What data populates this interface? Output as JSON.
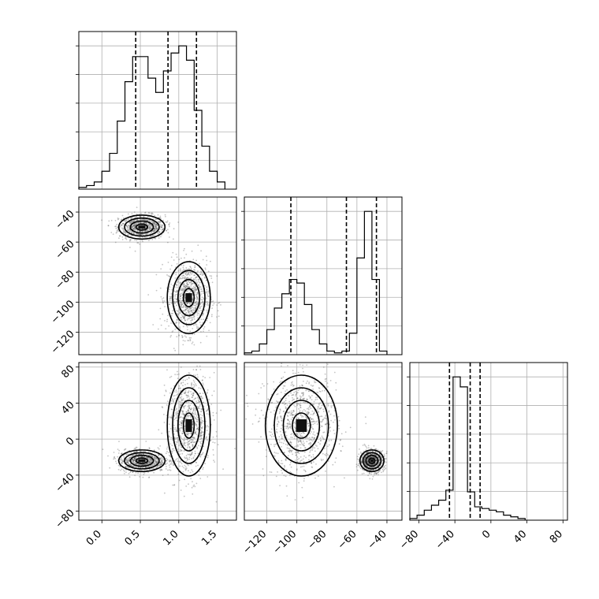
{
  "chart_data": {
    "type": "corner",
    "parameters": [
      {
        "index": 0,
        "range": [
          -0.3,
          1.75
        ],
        "ticks": [
          "0.0",
          "0.5",
          "1.0",
          "1.5"
        ],
        "tick_values": [
          0,
          0.5,
          1.0,
          1.5
        ],
        "quantiles": [
          0.44,
          0.86,
          1.23
        ],
        "histogram": {
          "edges_start": -0.3,
          "bin_width": 0.1,
          "counts": [
            0.5,
            1,
            2,
            5,
            10,
            19,
            30,
            37,
            37,
            31,
            27,
            33,
            38,
            40,
            36,
            22,
            12,
            5,
            2
          ]
        }
      },
      {
        "index": 1,
        "range": [
          -135,
          -30
        ],
        "ticks": [
          "−40",
          "−60",
          "−80",
          "−100",
          "−120"
        ],
        "tick_values": [
          -40,
          -60,
          -80,
          -100,
          -120
        ],
        "quantiles": [
          -104,
          -67,
          -47
        ],
        "histogram": {
          "edges_start": -135,
          "bin_width": 5,
          "counts": [
            0.5,
            1,
            3,
            7,
            13,
            17,
            21,
            20,
            14,
            7,
            3,
            1,
            0.5,
            1,
            6,
            27,
            40,
            21,
            1
          ]
        }
      },
      {
        "index": 2,
        "range": [
          -90,
          85
        ],
        "ticks": [
          "−80",
          "−40",
          "0",
          "40",
          "80"
        ],
        "tick_values": [
          -80,
          -40,
          0,
          40,
          80
        ],
        "quantiles": [
          -46,
          -23,
          -12
        ],
        "histogram": {
          "edges_start": -90,
          "bin_width": 8,
          "counts": [
            0.5,
            1.5,
            3,
            4.5,
            6,
            9,
            43,
            40,
            8.5,
            4,
            3.5,
            3,
            2.5,
            1.5,
            1,
            0.5
          ]
        }
      }
    ],
    "modes": [
      {
        "means": [
          0.52,
          -50,
          -24
        ],
        "sd": [
          0.15,
          4,
          6
        ],
        "weight": 0.5
      },
      {
        "means": [
          1.13,
          -97,
          15
        ],
        "sd": [
          0.14,
          12,
          28
        ],
        "weight": 0.5
      }
    ],
    "contour_levels": [
      "0.4",
      "0.9",
      "1.3",
      "1.8"
    ],
    "grid": true,
    "legend": "none"
  }
}
